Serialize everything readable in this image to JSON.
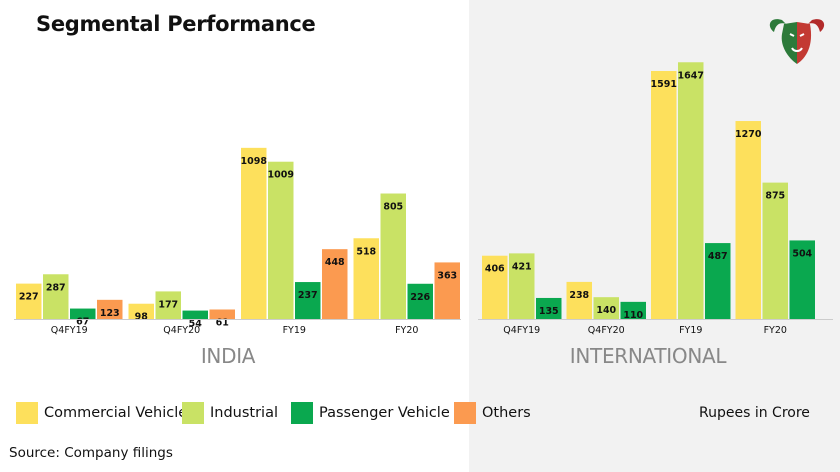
{
  "title": "Segmental Performance",
  "colors": {
    "Commercial Vehicle": "#fde05c",
    "Industrial": "#c9e265",
    "Passenger Vehicle": "#0aa84f",
    "Others": "#fb9a50"
  },
  "legend": [
    {
      "label": "Commercial Vehicle",
      "color": "#fde05c"
    },
    {
      "label": "Industrial",
      "color": "#c9e265"
    },
    {
      "label": "Passenger Vehicle",
      "color": "#0aa84f"
    },
    {
      "label": "Others",
      "color": "#fb9a50"
    }
  ],
  "units_note": "Rupees in Crore",
  "source": "Source: Company filings",
  "logo": {
    "icon": "bull-bear-logo-icon"
  },
  "chart_data": [
    {
      "type": "bar",
      "title": "INDIA",
      "categories": [
        "Q4FY19",
        "Q4FY20",
        "FY19",
        "FY20"
      ],
      "series": [
        {
          "name": "Commercial Vehicle",
          "values": [
            227,
            98,
            1098,
            518
          ]
        },
        {
          "name": "Industrial",
          "values": [
            287,
            177,
            1009,
            805
          ]
        },
        {
          "name": "Passenger Vehicle",
          "values": [
            67,
            54,
            237,
            226
          ]
        },
        {
          "name": "Others",
          "values": [
            123,
            61,
            448,
            363
          ]
        }
      ]
    },
    {
      "type": "bar",
      "title": "INTERNATIONAL",
      "categories": [
        "Q4FY19",
        "Q4FY20",
        "FY19",
        "FY20"
      ],
      "series": [
        {
          "name": "Commercial Vehicle",
          "values": [
            406,
            238,
            1591,
            1270
          ]
        },
        {
          "name": "Industrial",
          "values": [
            421,
            140,
            1647,
            875
          ]
        },
        {
          "name": "Passenger Vehicle",
          "values": [
            135,
            110,
            487,
            504
          ]
        }
      ]
    }
  ]
}
